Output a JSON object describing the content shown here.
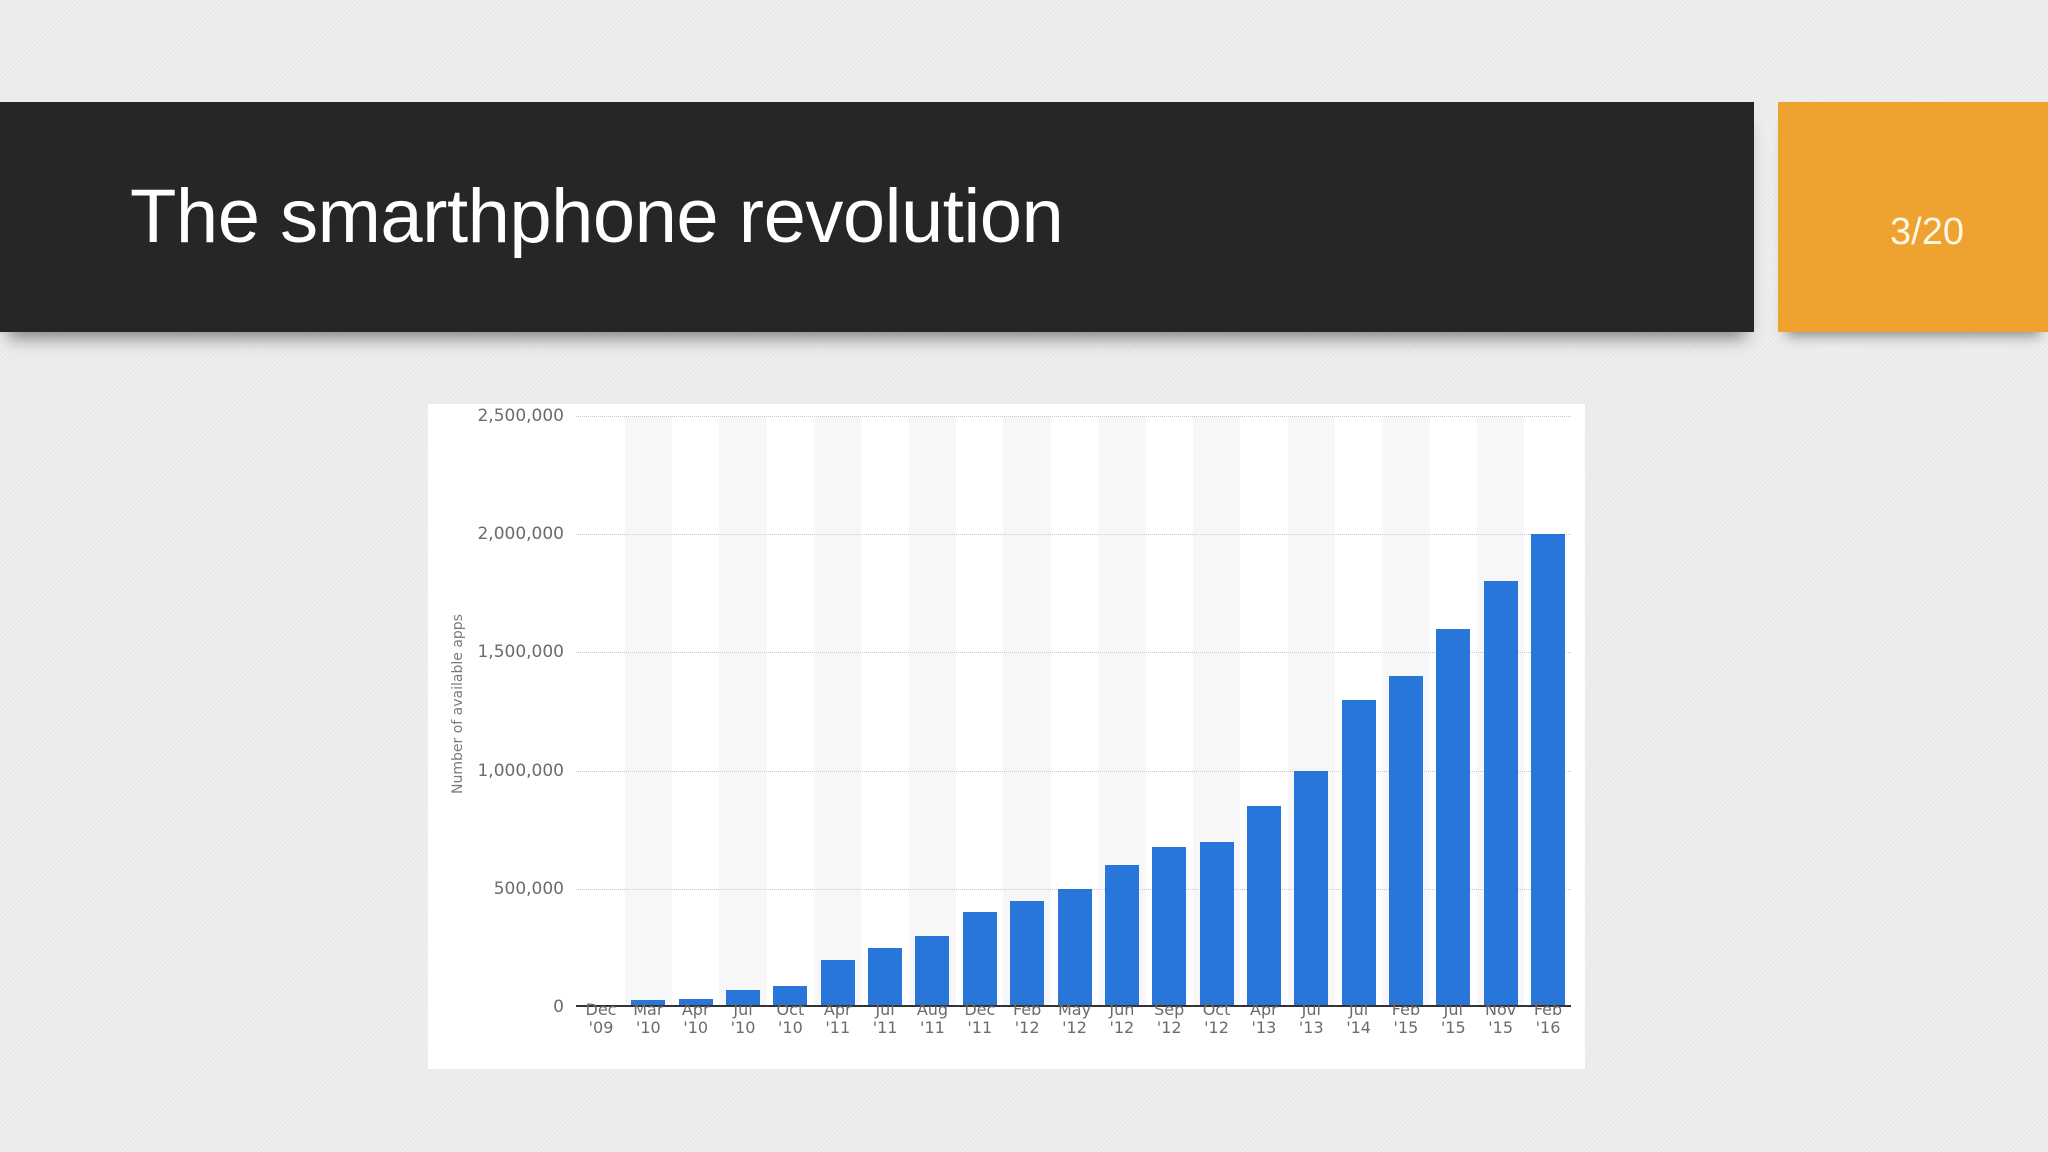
{
  "slide": {
    "title": "The smarthphone revolution",
    "page_indicator": "3/20",
    "colors": {
      "title_bar": "#262626",
      "page_box": "#eea22f",
      "bar": "#2876d9"
    }
  },
  "chart_data": {
    "type": "bar",
    "title": "",
    "xlabel": "",
    "ylabel": "Number of available apps",
    "ylim": [
      0,
      2500000
    ],
    "yticks": [
      0,
      500000,
      1000000,
      1500000,
      2000000,
      2500000
    ],
    "ytick_labels": [
      "0",
      "500,000",
      "1,000,000",
      "1,500,000",
      "2,000,000",
      "2,500,000"
    ],
    "grid": true,
    "legend": null,
    "categories": [
      "Dec '09",
      "Mar '10",
      "Apr '10",
      "Jul '10",
      "Oct '10",
      "Apr '11",
      "Jul '11",
      "Aug '11",
      "Dec '11",
      "Feb '12",
      "May '12",
      "Jun '12",
      "Sep '12",
      "Oct '12",
      "Apr '13",
      "Jul '13",
      "Jul '14",
      "Feb '15",
      "Jul '15",
      "Nov '15",
      "Feb '16"
    ],
    "category_lines": [
      [
        "Dec",
        "'09"
      ],
      [
        "Mar",
        "'10"
      ],
      [
        "Apr",
        "'10"
      ],
      [
        "Jul",
        "'10"
      ],
      [
        "Oct",
        "'10"
      ],
      [
        "Apr",
        "'11"
      ],
      [
        "Jul",
        "'11"
      ],
      [
        "Aug",
        "'11"
      ],
      [
        "Dec",
        "'11"
      ],
      [
        "Feb",
        "'12"
      ],
      [
        "May",
        "'12"
      ],
      [
        "Jun",
        "'12"
      ],
      [
        "Sep",
        "'12"
      ],
      [
        "Oct",
        "'12"
      ],
      [
        "Apr",
        "'13"
      ],
      [
        "Jul",
        "'13"
      ],
      [
        "Jul",
        "'14"
      ],
      [
        "Feb",
        "'15"
      ],
      [
        "Jul",
        "'15"
      ],
      [
        "Nov",
        "'15"
      ],
      [
        "Feb",
        "'16"
      ]
    ],
    "values": [
      10000,
      30000,
      35000,
      70000,
      90000,
      200000,
      250000,
      300000,
      400000,
      450000,
      500000,
      600000,
      675000,
      700000,
      850000,
      1000000,
      1300000,
      1400000,
      1600000,
      1800000,
      2000000
    ]
  }
}
